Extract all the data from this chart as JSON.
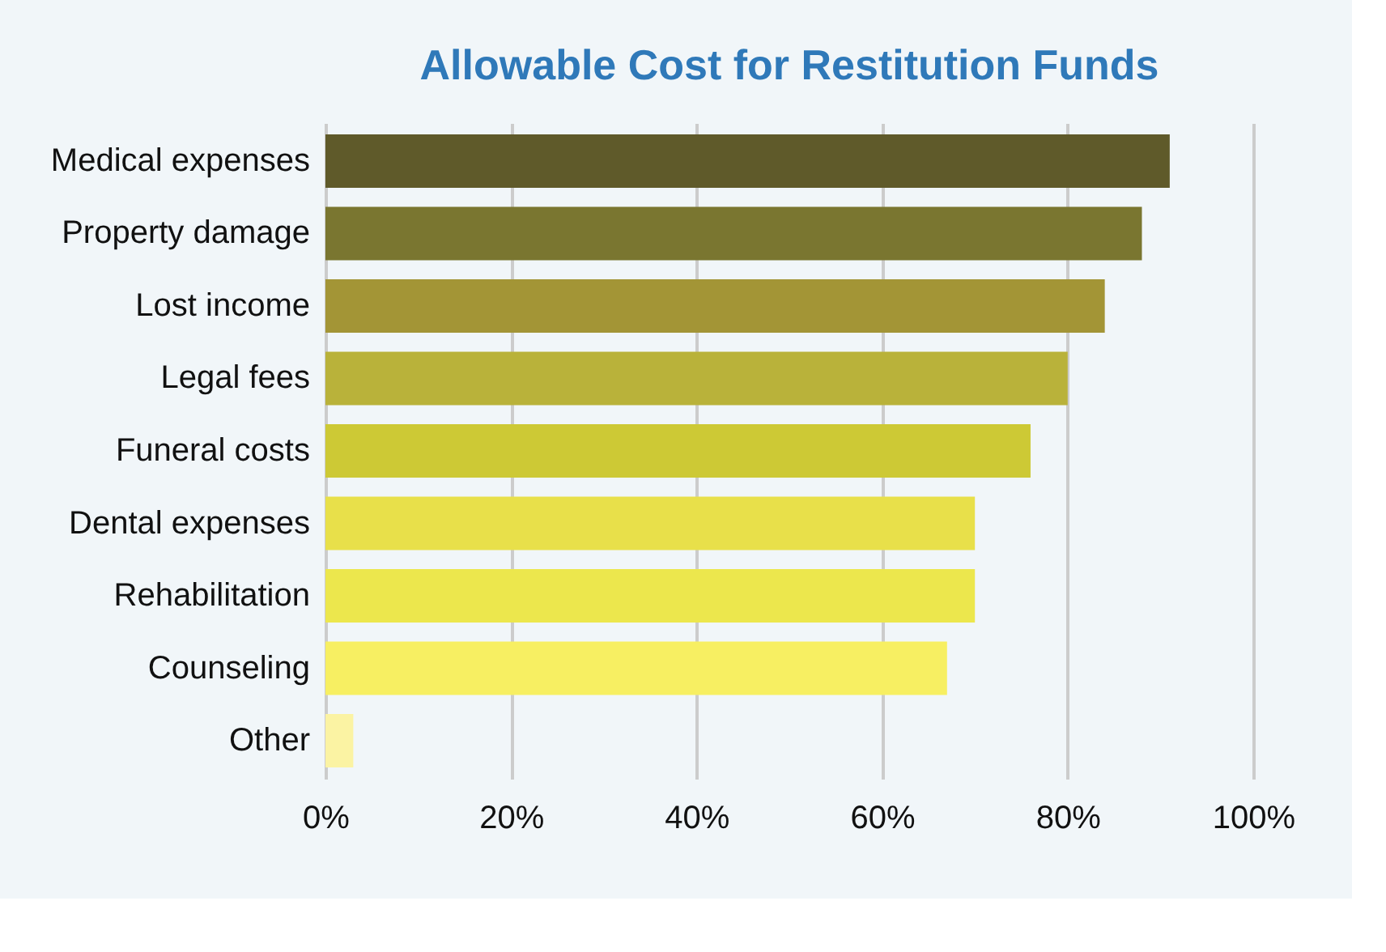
{
  "chart_data": {
    "type": "bar",
    "orientation": "horizontal",
    "title": "Allowable Cost for Restitution Funds",
    "categories": [
      "Medical expenses",
      "Property damage",
      "Lost income",
      "Legal fees",
      "Funeral costs",
      "Dental expenses",
      "Rehabilitation",
      "Counseling",
      "Other"
    ],
    "values": [
      91,
      88,
      84,
      80,
      76,
      70,
      70,
      67,
      3
    ],
    "colors": [
      "#5f5a2a",
      "#7a7630",
      "#a39536",
      "#b9b23a",
      "#cdc935",
      "#e8e04a",
      "#ece74d",
      "#f7ef62",
      "#fbf3a3"
    ],
    "xlim": [
      0,
      100
    ],
    "xticks": [
      {
        "value": 0,
        "label": "0%"
      },
      {
        "value": 20,
        "label": "20%"
      },
      {
        "value": 40,
        "label": "40%"
      },
      {
        "value": 60,
        "label": "60%"
      },
      {
        "value": 80,
        "label": "80%"
      },
      {
        "value": 100,
        "label": "100%"
      }
    ],
    "grid": "x"
  }
}
